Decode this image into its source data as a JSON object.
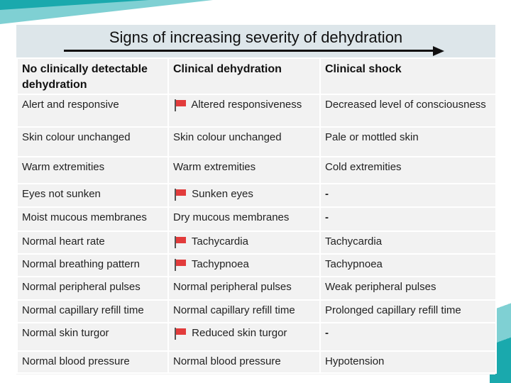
{
  "title": "Signs of increasing severity of dehydration",
  "columns": [
    "No clinically detectable dehydration",
    "Clinical dehydration",
    "Clinical shock"
  ],
  "red_flag_icon": "red-flag-icon",
  "colors": {
    "red_flag": "#e23b3b",
    "header_bg": "#dde6ea",
    "cell_bg": "#f2f2f2",
    "accent": "#1aa9ad"
  },
  "rows": [
    {
      "c1": "Alert and responsive",
      "c2": "Altered responsiveness",
      "c2_flag": true,
      "c3": "Decreased level of consciousness"
    },
    {
      "c1": "Skin colour unchanged",
      "c2": "Skin colour unchanged",
      "c2_flag": false,
      "c3": "Pale or mottled skin"
    },
    {
      "c1": "Warm extremities",
      "c2": "Warm extremities",
      "c2_flag": false,
      "c3": "Cold extremities"
    },
    {
      "c1": "Eyes not sunken",
      "c2": "Sunken eyes",
      "c2_flag": true,
      "c3": "-"
    },
    {
      "c1": "Moist mucous membranes",
      "c2": "Dry mucous membranes",
      "c2_flag": false,
      "c3": "-"
    },
    {
      "c1": "Normal heart rate",
      "c2": "Tachycardia",
      "c2_flag": true,
      "c3": "Tachycardia"
    },
    {
      "c1": "Normal breathing pattern",
      "c2": "Tachypnoea",
      "c2_flag": true,
      "c3": "Tachypnoea"
    },
    {
      "c1": "Normal peripheral pulses",
      "c2": "Normal peripheral pulses",
      "c2_flag": false,
      "c3": "Weak peripheral pulses"
    },
    {
      "c1": "Normal capillary refill time",
      "c2": "Normal capillary refill time",
      "c2_flag": false,
      "c3": "Prolonged capillary refill time"
    },
    {
      "c1": "Normal skin turgor",
      "c2": "Reduced skin turgor",
      "c2_flag": true,
      "c3": "-"
    },
    {
      "c1": "Normal blood pressure",
      "c2": "Normal blood pressure",
      "c2_flag": false,
      "c3": "Hypotension"
    }
  ]
}
